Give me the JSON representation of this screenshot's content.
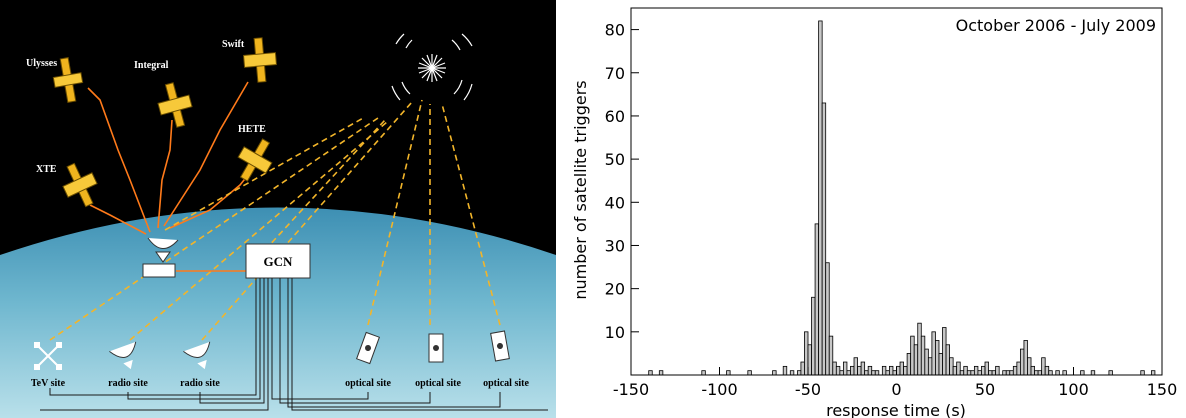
{
  "diagram": {
    "satellites": [
      "Ulysses",
      "Integral",
      "Swift",
      "HETE",
      "XTE"
    ],
    "center_label": "GCN",
    "sites": [
      "TeV site",
      "radio site",
      "radio site",
      "optical site",
      "optical site",
      "optical site"
    ]
  },
  "chart_data": {
    "type": "histogram",
    "title": "October 2006 - July 2009",
    "xlabel": "response time (s)",
    "ylabel": "number of satellite triggers",
    "xlim": [
      -150,
      150
    ],
    "ylim": [
      0,
      85
    ],
    "x_ticks": [
      -150,
      -100,
      -50,
      0,
      50,
      100,
      150
    ],
    "y_ticks": [
      10,
      20,
      30,
      40,
      50,
      60,
      70,
      80
    ],
    "bin_width": 2,
    "bins": [
      [
        -140,
        1
      ],
      [
        -134,
        1
      ],
      [
        -110,
        1
      ],
      [
        -96,
        1
      ],
      [
        -84,
        1
      ],
      [
        -70,
        1
      ],
      [
        -64,
        2
      ],
      [
        -60,
        1
      ],
      [
        -56,
        1
      ],
      [
        -54,
        3
      ],
      [
        -52,
        10
      ],
      [
        -50,
        7
      ],
      [
        -48,
        18
      ],
      [
        -46,
        35
      ],
      [
        -44,
        82
      ],
      [
        -42,
        63
      ],
      [
        -40,
        26
      ],
      [
        -38,
        9
      ],
      [
        -36,
        3
      ],
      [
        -34,
        2
      ],
      [
        -32,
        1
      ],
      [
        -30,
        3
      ],
      [
        -28,
        1
      ],
      [
        -26,
        2
      ],
      [
        -24,
        4
      ],
      [
        -22,
        2
      ],
      [
        -20,
        3
      ],
      [
        -18,
        1
      ],
      [
        -16,
        2
      ],
      [
        -14,
        1
      ],
      [
        -12,
        1
      ],
      [
        -8,
        2
      ],
      [
        -6,
        1
      ],
      [
        -4,
        2
      ],
      [
        -2,
        1
      ],
      [
        0,
        2
      ],
      [
        2,
        3
      ],
      [
        4,
        2
      ],
      [
        6,
        5
      ],
      [
        8,
        9
      ],
      [
        10,
        7
      ],
      [
        12,
        12
      ],
      [
        14,
        9
      ],
      [
        16,
        6
      ],
      [
        18,
        4
      ],
      [
        20,
        10
      ],
      [
        22,
        8
      ],
      [
        24,
        5
      ],
      [
        26,
        11
      ],
      [
        28,
        7
      ],
      [
        30,
        4
      ],
      [
        32,
        2
      ],
      [
        34,
        3
      ],
      [
        36,
        1
      ],
      [
        38,
        2
      ],
      [
        40,
        1
      ],
      [
        42,
        1
      ],
      [
        44,
        2
      ],
      [
        46,
        1
      ],
      [
        48,
        2
      ],
      [
        50,
        3
      ],
      [
        52,
        1
      ],
      [
        54,
        1
      ],
      [
        56,
        2
      ],
      [
        60,
        1
      ],
      [
        62,
        1
      ],
      [
        64,
        1
      ],
      [
        66,
        2
      ],
      [
        68,
        3
      ],
      [
        70,
        6
      ],
      [
        72,
        8
      ],
      [
        74,
        4
      ],
      [
        76,
        2
      ],
      [
        78,
        1
      ],
      [
        80,
        1
      ],
      [
        82,
        4
      ],
      [
        84,
        2
      ],
      [
        86,
        1
      ],
      [
        90,
        1
      ],
      [
        94,
        1
      ],
      [
        104,
        1
      ],
      [
        110,
        1
      ],
      [
        120,
        1
      ],
      [
        138,
        1
      ],
      [
        144,
        1
      ]
    ]
  }
}
